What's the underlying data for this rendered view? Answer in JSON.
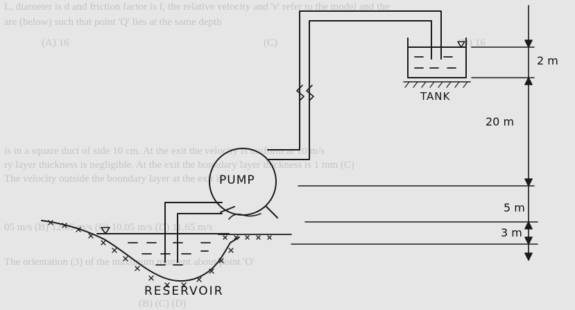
{
  "labels": {
    "pump": "PUMP",
    "tank": "TANK",
    "reservoir": "RESERVOIR",
    "dim_tank_depth": "2 m",
    "dim_lift": "20 m",
    "dim_pump_above": "5 m",
    "dim_pump_below": "3 m"
  },
  "bleed_text": [
    "L, diameter is d and friction factor is f, the relative velocity and 'v' refer to the model and the",
    "are (below) such that point 'Q' lies at the same depth",
    "(A) 16",
    "(C)",
    "(D) 16",
    "is in a square duct of side 10 cm. At the exit the velocity is uniform at 10 m/s",
    "ry layer thickness is negligible. At the exit the boundary layer thickness is 1 mm (C)",
    "The velocity outside the boundary layer at the exit is:",
    "05 m/s  (B) 12.05 m/s  (C) 10.05 m/s  (D) 11.65 m/s",
    "The orientation (3) of the maximum moment about point 'O'",
    "(B)   (C)   (D)"
  ]
}
